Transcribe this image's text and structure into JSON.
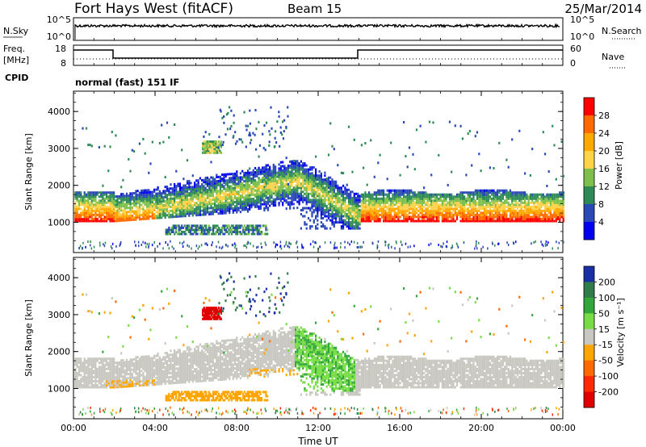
{
  "header": {
    "station": "Fort Hays West (fitACF)",
    "beam": "Beam 15",
    "date": "25/Mar/2014"
  },
  "strip1": {
    "left_label": "N.Sky",
    "left_ticks": [
      "10^5",
      "10^0"
    ],
    "right_label": "N.Search",
    "right_ticks": [
      "10^5",
      "10^0"
    ]
  },
  "strip2": {
    "left_label_1": "Freq.",
    "left_label_2": "[MHz]",
    "left_ticks": [
      "18",
      "8"
    ],
    "right_label": "Nave",
    "right_ticks": [
      "60",
      "0"
    ],
    "cpid_label": "CPID",
    "mode_text": "normal (fast) 151 IF"
  },
  "axes": {
    "ylabel": "Slant Range [km]",
    "yticks": [
      "4000",
      "3000",
      "2000",
      "1000"
    ],
    "xlabel": "Time UT",
    "xticks": [
      "00:00",
      "04:00",
      "08:00",
      "12:00",
      "16:00",
      "20:00",
      "00:00"
    ]
  },
  "colorbars": {
    "power": {
      "label": "Power [dB]",
      "ticks": [
        "28",
        "24",
        "20",
        "16",
        "12",
        "8",
        "4"
      ],
      "colors": [
        "#ff0000",
        "#ff6a00",
        "#ffa800",
        "#ffd24a",
        "#7fc04c",
        "#2e8b57",
        "#2a48b8",
        "#0000ee"
      ]
    },
    "velocity": {
      "label": "Velocity [m s⁻¹]",
      "ticks": [
        "200",
        "100",
        "50",
        "15",
        "-15",
        "-50",
        "-100",
        "-200"
      ],
      "colors": [
        "#1a2ea8",
        "#2f7b4a",
        "#33a83a",
        "#77dd44",
        "#c8c8c0",
        "#ffa500",
        "#ff6a00",
        "#ff2a00",
        "#e00000"
      ]
    }
  },
  "chart_data": [
    {
      "type": "heatmap",
      "title": "",
      "xlabel": "Time UT",
      "ylabel": "Slant Range [km]",
      "xlim_hours": [
        0,
        24
      ],
      "ylim_km": [
        180,
        4550
      ],
      "colorbar": "Power [dB]",
      "regions": [
        {
          "name": "main ground-scatter band 00-02",
          "t": [
            0,
            2
          ],
          "range_km": [
            950,
            1750
          ],
          "peak_db": 28
        },
        {
          "name": "rising band 02-11",
          "t": [
            2,
            11
          ],
          "range_km": [
            1050,
            2300
          ],
          "peak_db": 22
        },
        {
          "name": "descending trace 11-14",
          "t": [
            11,
            14
          ],
          "range_km": [
            800,
            2700
          ],
          "peak_db": 24
        },
        {
          "name": "main band 14-24",
          "t": [
            14,
            24
          ],
          "range_km": [
            1000,
            1750
          ],
          "peak_db": 28
        },
        {
          "name": "weak band near 800 km",
          "t": [
            4.5,
            9.5
          ],
          "range_km": [
            650,
            900
          ],
          "peak_db": 10
        },
        {
          "name": "upper patches",
          "t": [
            0,
            24
          ],
          "range_km": [
            1900,
            4300
          ],
          "peak_db": 12
        }
      ]
    },
    {
      "type": "heatmap",
      "title": "",
      "xlabel": "Time UT",
      "ylabel": "Slant Range [km]",
      "xlim_hours": [
        0,
        24
      ],
      "ylim_km": [
        180,
        4550
      ],
      "colorbar": "Velocity [m s-1]",
      "regions": [
        {
          "name": "ground scatter (grey)",
          "t": [
            0,
            24
          ],
          "range_km": [
            900,
            2300
          ],
          "velocity": 0
        },
        {
          "name": "red patch near 3000 km",
          "t": [
            6.3,
            7.2
          ],
          "range_km": [
            2850,
            3150
          ],
          "velocity": -200
        },
        {
          "name": "green trace 11-14",
          "t": [
            10.8,
            13.8
          ],
          "range_km": [
            800,
            2700
          ],
          "velocity": 40
        },
        {
          "name": "orange band near 800 km",
          "t": [
            4.5,
            9.5
          ],
          "range_km": [
            650,
            900
          ],
          "velocity": -40
        },
        {
          "name": "blue patches",
          "t": [
            7,
            10.5
          ],
          "range_km": [
            2900,
            4100
          ],
          "velocity": 200
        }
      ]
    }
  ]
}
